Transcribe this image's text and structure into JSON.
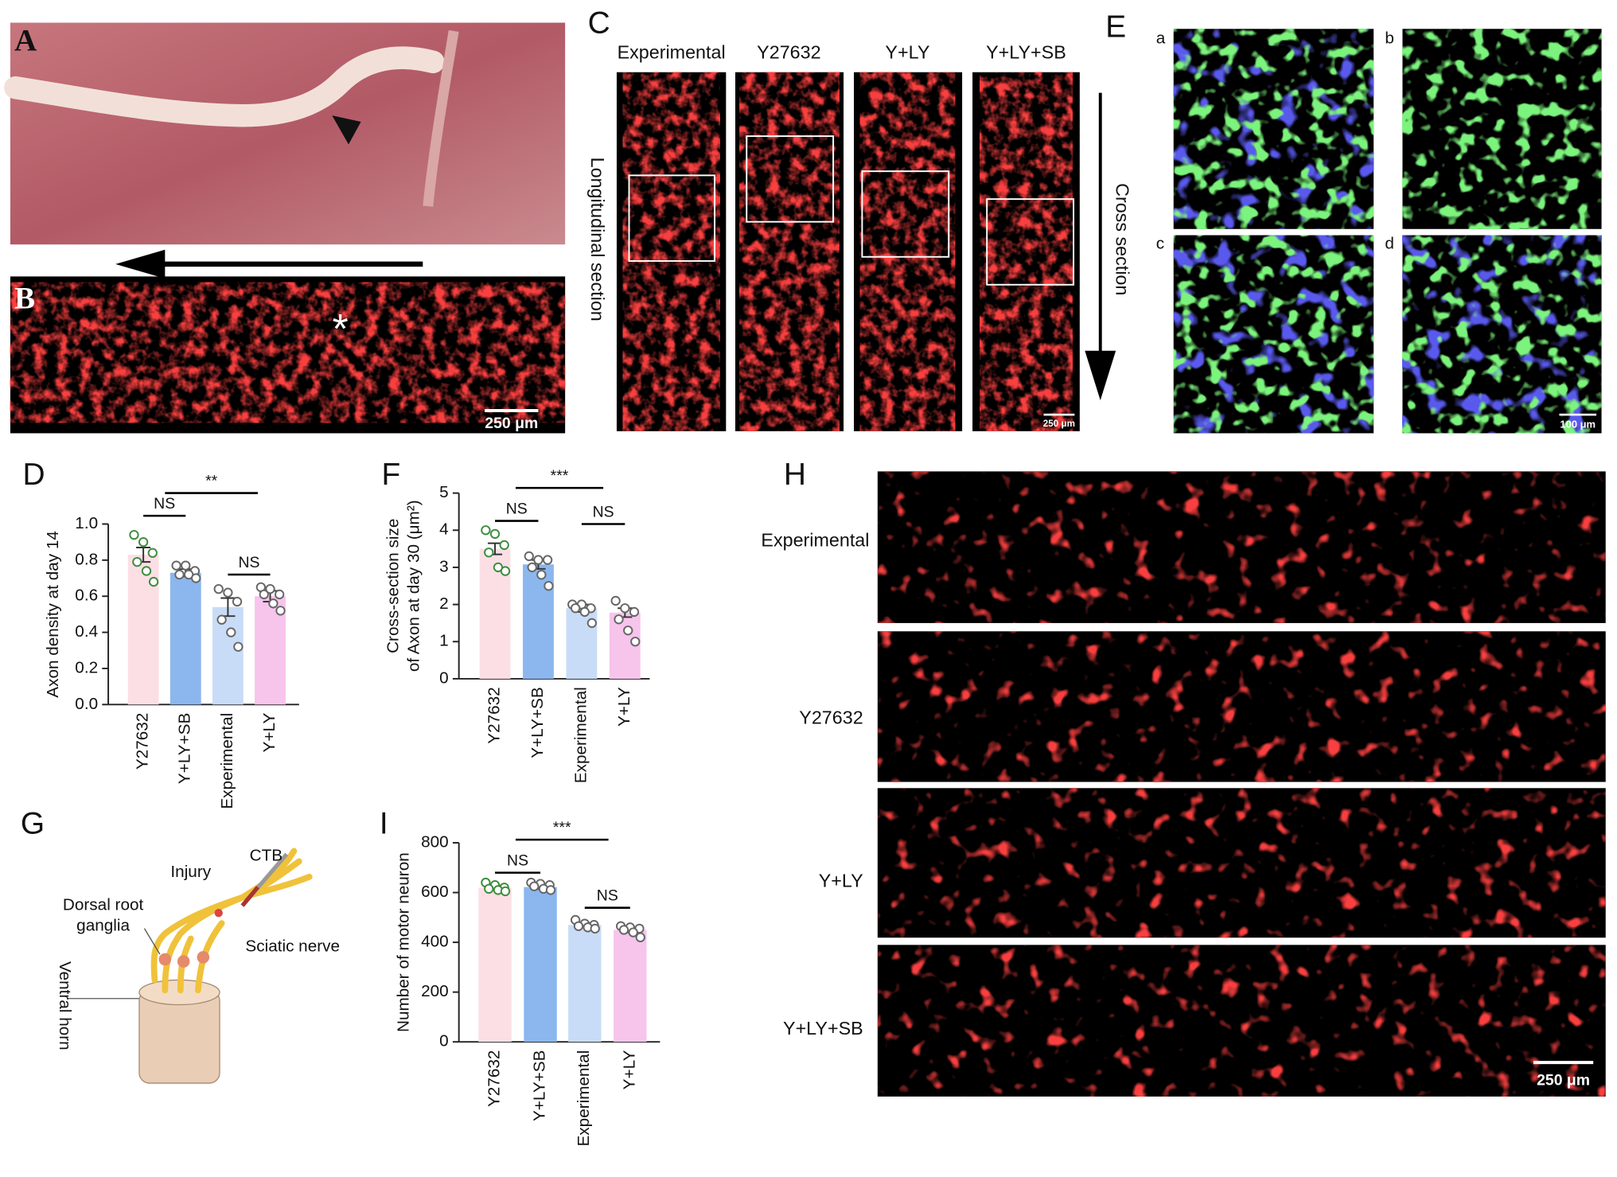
{
  "chart_data": [
    {
      "type": "bar",
      "panel": "D",
      "ylabel": [
        "Axon density at day 14"
      ],
      "categories": [
        "Y27632",
        "Y+LY+SB",
        "Experimental",
        "Y+LY"
      ],
      "colors": [
        "#fcdfe5",
        "#8bb7ee",
        "#c8dcf7",
        "#f7c4ec"
      ],
      "point_colors": [
        "#3d8c3d",
        "#666666",
        "#666666",
        "#666666"
      ],
      "values": [
        0.83,
        0.73,
        0.54,
        0.6
      ],
      "errors": [
        0.04,
        0.02,
        0.05,
        0.03
      ],
      "points": [
        [
          0.94,
          0.9,
          0.84,
          0.79,
          0.74,
          0.68
        ],
        [
          0.77,
          0.77,
          0.74,
          0.72,
          0.72,
          0.7
        ],
        [
          0.64,
          0.62,
          0.57,
          0.47,
          0.4,
          0.32
        ],
        [
          0.65,
          0.64,
          0.61,
          0.61,
          0.56,
          0.52
        ]
      ],
      "ylim": [
        0,
        1
      ],
      "yticks": [
        {
          "value": 0,
          "label": "0.0"
        },
        0.2,
        0.4,
        0.6,
        0.8,
        {
          "value": 1,
          "label": "1.0"
        }
      ],
      "annotations": [
        "NS",
        "**",
        "NS"
      ]
    },
    {
      "type": "bar",
      "panel": "F",
      "ylabel": [
        "Cross-section size",
        "of Axon at day 30 (μm²)"
      ],
      "categories": [
        "Y27632",
        "Y+LY+SB",
        "Experimental",
        "Y+LY"
      ],
      "colors": [
        "#fcdfe5",
        "#8bb7ee",
        "#c8dcf7",
        "#f7c4ec"
      ],
      "point_colors": [
        "#3d8c3d",
        "#666666",
        "#666666",
        "#666666"
      ],
      "values": [
        3.5,
        3.08,
        1.9,
        1.78
      ],
      "errors": [
        0.15,
        0.12,
        0.1,
        0.12
      ],
      "points": [
        [
          4.0,
          3.9,
          3.6,
          3.4,
          3.0,
          2.9
        ],
        [
          3.3,
          3.2,
          3.2,
          3.0,
          2.8,
          2.5
        ],
        [
          2.0,
          2.0,
          1.9,
          1.9,
          1.8,
          1.5
        ],
        [
          2.1,
          1.9,
          1.8,
          1.6,
          1.3,
          1.0
        ]
      ],
      "ylim": [
        0,
        5
      ],
      "yticks": [
        0,
        1,
        2,
        3,
        4,
        5
      ],
      "annotations": [
        "NS",
        "***",
        "NS"
      ]
    },
    {
      "type": "bar",
      "panel": "I",
      "ylabel": [
        "Number of motor neuron"
      ],
      "categories": [
        "Y27632",
        "Y+LY+SB",
        "Experimental",
        "Y+LY"
      ],
      "colors": [
        "#fcdfe5",
        "#8bb7ee",
        "#c8dcf7",
        "#f7c4ec"
      ],
      "point_colors": [
        "#3d8c3d",
        "#666666",
        "#666666",
        "#666666"
      ],
      "values": [
        620,
        622,
        470,
        450
      ],
      "errors": [
        8,
        7,
        8,
        10
      ],
      "points": [
        [
          640,
          630,
          620,
          615,
          610,
          605
        ],
        [
          640,
          635,
          630,
          625,
          615,
          610
        ],
        [
          490,
          475,
          470,
          465,
          460,
          455
        ],
        [
          465,
          460,
          455,
          450,
          440,
          420
        ]
      ],
      "ylim": [
        0,
        800
      ],
      "yticks": [
        0,
        200,
        400,
        600,
        800
      ],
      "annotations": [
        "NS",
        "***",
        "NS"
      ]
    }
  ],
  "panels": {
    "A": {
      "letter": "A"
    },
    "B": {
      "letter": "B",
      "marker": "*",
      "scale": "250 μm"
    },
    "C": {
      "letter": "C",
      "titles": [
        "Experimental",
        "Y27632",
        "Y+LY",
        "Y+LY+SB"
      ],
      "left_label": "Longitudinal section",
      "right_label": "Cross section",
      "scale": "250 μm"
    },
    "E": {
      "letter": "E",
      "sublabels": [
        "a",
        "b",
        "c",
        "d"
      ],
      "scale": "100 μm"
    },
    "G": {
      "letter": "G",
      "ctb": "CTB",
      "injury": "Injury",
      "dorsal_root_ganglia": [
        "Dorsal root",
        "ganglia"
      ],
      "sciatic_nerve": "Sciatic nerve",
      "ventral_horn": "Ventral horn"
    },
    "H": {
      "letter": "H",
      "rows": [
        "Experimental",
        "Y27632",
        "Y+LY",
        "Y+LY+SB"
      ],
      "scale": "250 μm"
    }
  }
}
